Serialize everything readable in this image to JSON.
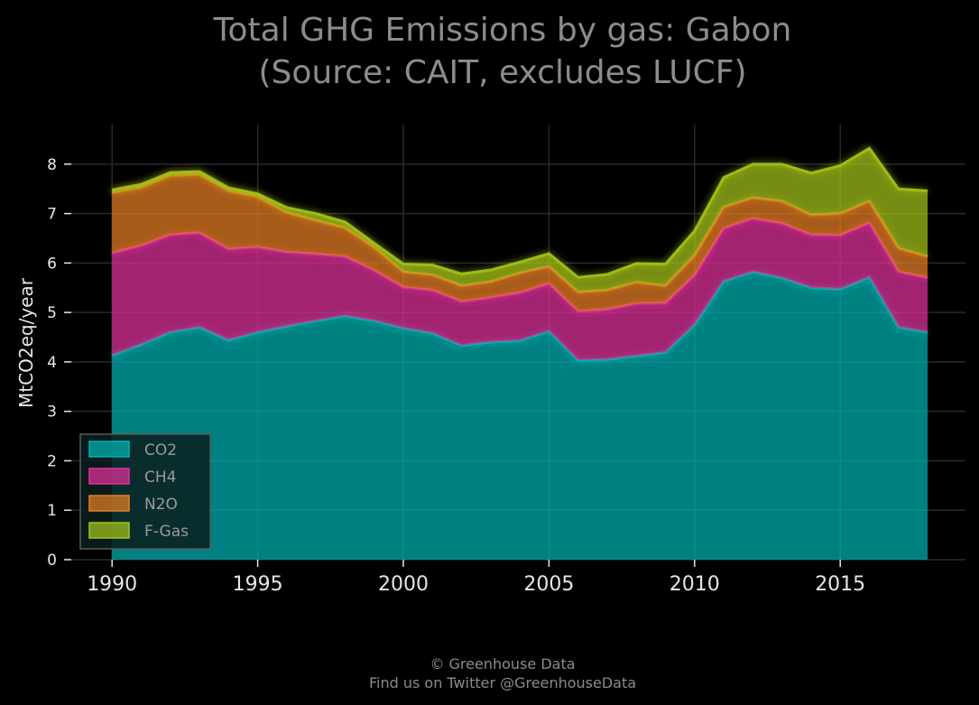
{
  "chart_data": {
    "type": "area",
    "stacked": true,
    "title_line1": "Total GHG Emissions by gas: Gabon",
    "title_line2": "(Source: CAIT, excludes LUCF)",
    "xlabel": "",
    "ylabel": "MtCO2eq/year",
    "xlim": [
      1988.6,
      2019.3
    ],
    "ylim": [
      0,
      8.8
    ],
    "x_ticks": [
      1990,
      1995,
      2000,
      2005,
      2010,
      2015
    ],
    "y_ticks": [
      0,
      1,
      2,
      3,
      4,
      5,
      6,
      7,
      8
    ],
    "grid": true,
    "legend_position": "lower-left",
    "x": [
      1990,
      1991,
      1992,
      1993,
      1994,
      1995,
      1996,
      1997,
      1998,
      1999,
      2000,
      2001,
      2002,
      2003,
      2004,
      2005,
      2006,
      2007,
      2008,
      2009,
      2010,
      2011,
      2012,
      2013,
      2014,
      2015,
      2016,
      2017,
      2018
    ],
    "series": [
      {
        "name": "CO2",
        "color": "#00b3b3",
        "values": [
          4.13,
          4.35,
          4.6,
          4.7,
          4.44,
          4.6,
          4.72,
          4.83,
          4.93,
          4.83,
          4.68,
          4.58,
          4.33,
          4.4,
          4.43,
          4.62,
          4.03,
          4.05,
          4.12,
          4.19,
          4.75,
          5.63,
          5.82,
          5.7,
          5.5,
          5.47,
          5.71,
          4.7,
          4.6
        ]
      },
      {
        "name": "CH4",
        "color": "#e0309a",
        "values": [
          2.07,
          2.0,
          1.97,
          1.91,
          1.84,
          1.72,
          1.5,
          1.35,
          1.2,
          1.02,
          0.83,
          0.87,
          0.89,
          0.9,
          0.97,
          0.96,
          0.99,
          1.01,
          1.06,
          1.0,
          1.0,
          1.07,
          1.08,
          1.1,
          1.07,
          1.09,
          1.1,
          1.12,
          1.1
        ]
      },
      {
        "name": "N2O",
        "color": "#e67e22",
        "values": [
          1.22,
          1.18,
          1.2,
          1.18,
          1.18,
          1.02,
          0.8,
          0.68,
          0.58,
          0.47,
          0.31,
          0.31,
          0.32,
          0.32,
          0.4,
          0.35,
          0.39,
          0.39,
          0.43,
          0.35,
          0.4,
          0.43,
          0.42,
          0.45,
          0.4,
          0.44,
          0.44,
          0.48,
          0.43
        ]
      },
      {
        "name": "F-Gas",
        "color": "#a3c41a",
        "values": [
          0.06,
          0.06,
          0.06,
          0.06,
          0.06,
          0.06,
          0.1,
          0.14,
          0.12,
          0.08,
          0.16,
          0.2,
          0.24,
          0.24,
          0.22,
          0.26,
          0.3,
          0.32,
          0.38,
          0.44,
          0.5,
          0.6,
          0.68,
          0.75,
          0.85,
          0.97,
          1.07,
          1.2,
          1.33
        ]
      }
    ],
    "legend": [
      "CO2",
      "CH4",
      "N2O",
      "F-Gas"
    ]
  },
  "footer": {
    "line1": "© Greenhouse Data",
    "line2": "Find us on Twitter @GreenhouseData"
  },
  "colors": {
    "background": "#000000",
    "grid": "#2a2a2a",
    "axis_text": "#e6e6e6",
    "title_text": "#8c8c8c"
  }
}
